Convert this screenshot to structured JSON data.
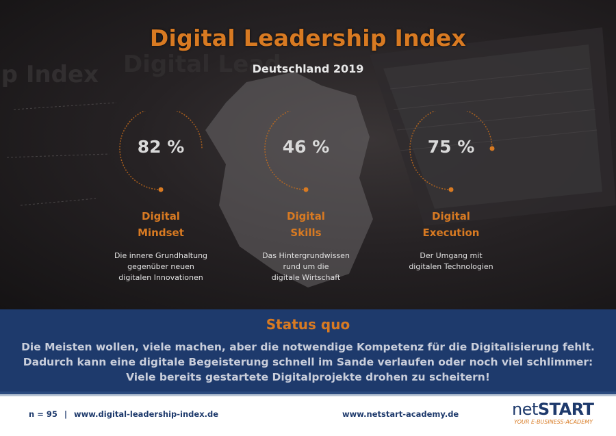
{
  "header": {
    "title": "Digital Leadership Index",
    "subtitle": "Deutschland 2019"
  },
  "metrics": [
    {
      "value": "82 %",
      "progress_percent": 82,
      "label_line1": "Digital",
      "label_line2": "Mindset",
      "desc_lines": [
        "Die innere Grundhaltung",
        "gegenüber neuen",
        "digitalen Innovationen"
      ]
    },
    {
      "value": "46 %",
      "progress_percent": 46,
      "label_line1": "Digital",
      "label_line2": "Skills",
      "desc_lines": [
        "Das Hintergrundwissen",
        "rund um die",
        "digitale Wirtschaft"
      ]
    },
    {
      "value": "75 %",
      "progress_percent": 75,
      "label_line1": "Digital",
      "label_line2": "Execution",
      "desc_lines": [
        "Der Umgang mit",
        "digitalen Technologien"
      ]
    }
  ],
  "status": {
    "title": "Status quo",
    "lines": [
      "Die Meisten wollen, viele machen, aber die notwendige Kompetenz für die Digitalisierung fehlt.",
      "Dadurch kann eine digitale Begeisterung schnell im Sande verlaufen oder noch viel schlimmer:",
      "Viele bereits gestartete Digitalprojekte drohen zu scheitern!"
    ]
  },
  "footer": {
    "sample": "n = 95",
    "separator": "|",
    "index_url": "www.digital-leadership-index.de",
    "academy_url": "www.netstart-academy.de",
    "logo_net": "net",
    "logo_start": "START",
    "logo_tagline": "YOUR E-BUSINESS-ACADEMY"
  },
  "colors": {
    "accent": "#d87a22",
    "navy": "#1e3a6c",
    "dark_bg": "#1f1c1d"
  }
}
